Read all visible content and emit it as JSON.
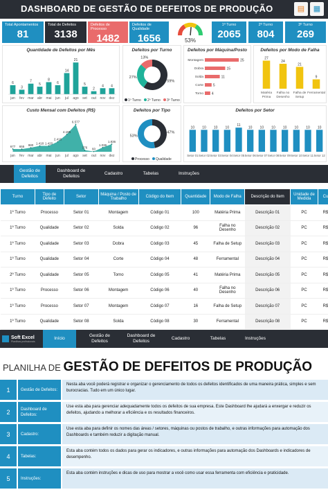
{
  "header": {
    "title": "DASHBOARD DE GESTÃO DE DEFEITOS DE PRODUÇÃO"
  },
  "kpis": [
    {
      "label": "Total Apontamentos",
      "value": "81",
      "color": "#1f8fc1"
    },
    {
      "label": "Total de Defeitos",
      "value": "3138",
      "color": "#2a2e35"
    },
    {
      "label": "Defeitos de Processo",
      "value": "1482",
      "color": "#e96b6b"
    },
    {
      "label": "Defeitos de Qualidade",
      "value": "1656",
      "color": "#1f8fc1"
    }
  ],
  "gauge": {
    "value": "53%",
    "fraction": 0.53
  },
  "turnos": [
    {
      "label": "1º Turno",
      "value": "2065"
    },
    {
      "label": "2º Turno",
      "value": "804"
    },
    {
      "label": "3º Turno",
      "value": "269"
    }
  ],
  "charts": {
    "mes": {
      "title": "Quantidade de Defeitos por Mês",
      "type": "bar",
      "categories": [
        "jan",
        "fev",
        "mar",
        "abr",
        "mai",
        "jun",
        "jul",
        "ago",
        "set",
        "out",
        "nov",
        "dez"
      ],
      "values": [
        6,
        3,
        7,
        5,
        8,
        6,
        14,
        21,
        5,
        2,
        4,
        4
      ]
    },
    "turno": {
      "title": "Defeitos por Turno",
      "type": "pie",
      "labels": [
        "1º Turno",
        "2º Turno",
        "3º Turno"
      ],
      "values": [
        59,
        27,
        13
      ],
      "value_labels": [
        "59%",
        "27%",
        "13%"
      ],
      "colors": [
        "#2a2e35",
        "#1fb39a",
        "#e96b6b"
      ]
    },
    "maquina": {
      "title": "Defeitos por Máquina/Posto",
      "type": "bar",
      "categories": [
        "Montagem",
        "Dobra",
        "Solda",
        "Corte",
        "Torno"
      ],
      "values": [
        25,
        15,
        11,
        5,
        4
      ]
    },
    "modo": {
      "title": "Defeitos por Modo de Falha",
      "type": "bar",
      "categories": [
        "Matéria Prima",
        "Falha no Desenho",
        "Falha de Setup",
        "Ferramental"
      ],
      "tick_labels": [
        [
          "Matéria",
          "Prima"
        ],
        [
          "Falha no",
          "Desenho"
        ],
        [
          "Falha de",
          "Setup"
        ],
        [
          "Ferramental"
        ]
      ],
      "values": [
        27,
        24,
        21,
        9
      ]
    },
    "custo": {
      "title": "Custo Mensal com Defeitos (R$)",
      "type": "area",
      "categories": [
        "jan",
        "fev",
        "mar",
        "abr",
        "mai",
        "jun",
        "jul",
        "ago",
        "set",
        "out",
        "nov",
        "dez"
      ],
      "values": [
        677,
        655,
        980,
        1418,
        1420,
        2416,
        4185,
        6577,
        376,
        60,
        1036,
        1836
      ],
      "value_labels": [
        "677",
        "655",
        "980",
        "1.418",
        "1.420",
        "2.416",
        "4.185",
        "6.577",
        "376",
        "60",
        "1.036",
        "1.836"
      ]
    },
    "tipo": {
      "title": "Defeitos por Tipo",
      "type": "pie",
      "labels": [
        "Processo",
        "Qualidade"
      ],
      "values": [
        47,
        53
      ],
      "value_labels": [
        "47%",
        "53%"
      ],
      "colors": [
        "#2a2e35",
        "#1f8fc1"
      ]
    },
    "setor": {
      "title": "Defeitos por Setor",
      "type": "bar",
      "categories": [
        "Setor 01",
        "Setor 02",
        "Setor 03",
        "Setor 04",
        "Setor 05",
        "Setor 06",
        "Setor 07",
        "Setor 08",
        "Setor 09",
        "Setor 10",
        "Setor 11",
        "Setor 12"
      ],
      "values": [
        10,
        10,
        10,
        10,
        11,
        10,
        10,
        10,
        10,
        10,
        10,
        10
      ]
    }
  },
  "nav1": [
    "Gestão de Defeitos",
    "Dashboard de Defeitos",
    "Cadastro",
    "Tabelas",
    "Instruções"
  ],
  "table": {
    "headers": [
      "Turno",
      "Tipo de Defeito",
      "Setor",
      "Máquina / Posto de Trabalho",
      "Código do Item",
      "Quantidade",
      "Modo de Falha",
      "Descrição do Item",
      "Unidade de Medida",
      "Cu"
    ],
    "rows": [
      [
        "1º Turno",
        "Processo",
        "Setor 01",
        "Montagem",
        "Código 01",
        "100",
        "Matéria Prima",
        "Descrição 01",
        "PC",
        "R$"
      ],
      [
        "1º Turno",
        "Qualidade",
        "Setor 02",
        "Solda",
        "Código 02",
        "96",
        "Falha no Desenho",
        "Descrição 02",
        "PC",
        "R$"
      ],
      [
        "1º Turno",
        "Qualidade",
        "Setor 03",
        "Dobra",
        "Código 03",
        "45",
        "Falha de Setup",
        "Descrição 03",
        "PC",
        "R$"
      ],
      [
        "1º Turno",
        "Qualidade",
        "Setor 04",
        "Corte",
        "Código 04",
        "48",
        "Ferramental",
        "Descrição 04",
        "PC",
        "R$"
      ],
      [
        "2º Turno",
        "Qualidade",
        "Setor 05",
        "Torno",
        "Código 05",
        "41",
        "Matéria Prima",
        "Descrição 05",
        "PC",
        "R$"
      ],
      [
        "1º Turno",
        "Processo",
        "Setor 06",
        "Montagem",
        "Código 06",
        "40",
        "Falha no Desenho",
        "Descrição 06",
        "PC",
        "R$"
      ],
      [
        "1º Turno",
        "Processo",
        "Setor 07",
        "Montagem",
        "Código 07",
        "16",
        "Falha de Setup",
        "Descrição 07",
        "PC",
        "R$"
      ],
      [
        "1º Turno",
        "Qualidade",
        "Setor 08",
        "Solda",
        "Código 08",
        "30",
        "Ferramental",
        "Descrição 08",
        "PC",
        "R$"
      ]
    ]
  },
  "nav2": {
    "logo": "Soft Excel",
    "logo_sub": "Planilhas profissionais",
    "items": [
      "Início",
      "Gestão de Defeitos",
      "Dashboard de Defeitos",
      "Cadastro",
      "Tabelas",
      "Instruções"
    ]
  },
  "planilha": {
    "prefix": "PLANILHA DE ",
    "title": "GESTÃO DE DEFEITOS DE PRODUÇÃO"
  },
  "instructions": [
    {
      "num": "1",
      "label": "Gestão de Defeitos:",
      "text": "Nesta aba você poderá registrar e organizar o gerenciamento de todos os defeitos identificados de uma maneira prática, simples e sem burocracias. Tudo em um único lugar."
    },
    {
      "num": "2",
      "label": "Dashboard de Defeitos:",
      "text": "Use esta aba para gerenciar adequadamente todos os defeitos de sua empresa. Este Dashboard lhe ajudará a enxergar e reduzir os defeitos, ajudando a melhorar a eficiência e os resultados financeiros."
    },
    {
      "num": "3",
      "label": "Cadastro:",
      "text": "Use esta aba para definir os nomes das áreas / setores, máquinas ou postos de trabalho, e outras informações para automação dos Dashboards e também reduzir a digitação manual."
    },
    {
      "num": "4",
      "label": "Tabelas:",
      "text": "Esta aba contém todos os dados para gerar os indicadores, e outras informações para automação dos Dashboards e indicadores de desempenho."
    },
    {
      "num": "5",
      "label": "Instruções:",
      "text": "Esta aba contém instruções e dicas de uso para mostrar a você como usar essa ferramenta com eficiência e praticidade."
    }
  ]
}
